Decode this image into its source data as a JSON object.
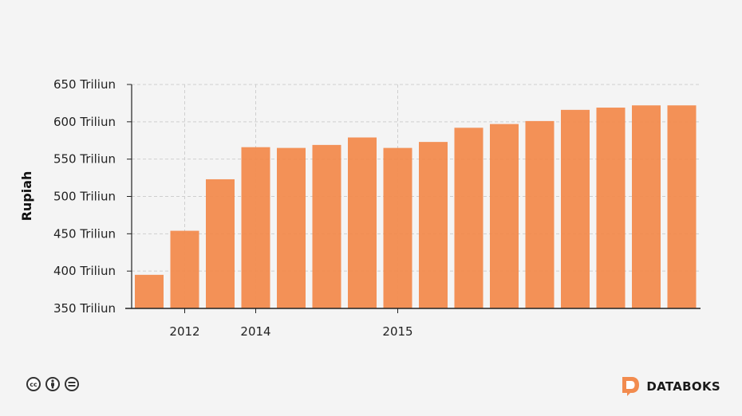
{
  "chart_data": {
    "type": "bar",
    "ylabel": "Rupiah",
    "ylim": [
      350,
      650
    ],
    "y_ticks": [
      {
        "value": 650,
        "label": "650 Triliun"
      },
      {
        "value": 600,
        "label": "600 Triliun"
      },
      {
        "value": 550,
        "label": "550 Triliun"
      },
      {
        "value": 500,
        "label": "500 Triliun"
      },
      {
        "value": 450,
        "label": "450 Triliun"
      },
      {
        "value": 400,
        "label": "400 Triliun"
      },
      {
        "value": 350,
        "label": "350 Triliun"
      }
    ],
    "x_ticks": [
      {
        "bar_index": 1,
        "label": "2012"
      },
      {
        "bar_index": 3,
        "label": "2014"
      },
      {
        "bar_index": 7,
        "label": "2015"
      }
    ],
    "values": [
      395,
      454,
      523,
      566,
      565,
      569,
      579,
      565,
      573,
      592,
      597,
      601,
      616,
      619,
      622,
      622
    ],
    "grid": true,
    "bar_color": "#f28b4e"
  },
  "footer": {
    "license_icons": [
      "cc-icon",
      "by-person-icon",
      "nd-equals-icon"
    ],
    "brand_name": "DATABOKS",
    "brand_color": "#f28b4e"
  }
}
